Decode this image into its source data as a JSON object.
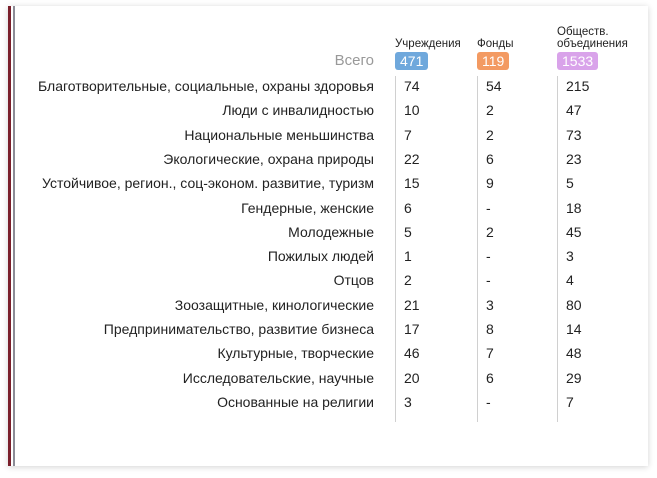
{
  "header": {
    "total_label": "Всего",
    "columns": [
      {
        "name": "Учреждения",
        "total": 471,
        "color": "#6fa8dc"
      },
      {
        "name": "Фонды",
        "total": 119,
        "color": "#f39a62"
      },
      {
        "name": "Обществ. объединения",
        "total": 1533,
        "color": "#d9a3ea"
      }
    ]
  },
  "rows": [
    {
      "label": "Благотворительные, социальные, охраны здоровья",
      "values": [
        74,
        54,
        215
      ]
    },
    {
      "label": "Люди с инвалидностью",
      "values": [
        10,
        2,
        47
      ]
    },
    {
      "label": "Национальные меньшинства",
      "values": [
        7,
        2,
        73
      ]
    },
    {
      "label": "Экологические, охрана природы",
      "values": [
        22,
        6,
        23
      ]
    },
    {
      "label": "Устойчивое, регион., соц-эконом. развитие, туризм",
      "values": [
        15,
        9,
        5
      ]
    },
    {
      "label": "Гендерные, женские",
      "values": [
        6,
        "-",
        18
      ]
    },
    {
      "label": "Молодежные",
      "values": [
        5,
        2,
        45
      ]
    },
    {
      "label": "Пожилых людей",
      "values": [
        1,
        "-",
        3
      ]
    },
    {
      "label": "Отцов",
      "values": [
        2,
        "-",
        4
      ]
    },
    {
      "label": "Зоозащитные, кинологические",
      "values": [
        21,
        3,
        80
      ]
    },
    {
      "label": "Предпринимательство, развитие бизнеса",
      "values": [
        17,
        8,
        14
      ]
    },
    {
      "label": "Культурные, творческие",
      "values": [
        46,
        7,
        48
      ]
    },
    {
      "label": "Исследовательские, научные",
      "values": [
        20,
        6,
        29
      ]
    },
    {
      "label": "Основанные на религии",
      "values": [
        3,
        "-",
        7
      ]
    }
  ]
}
